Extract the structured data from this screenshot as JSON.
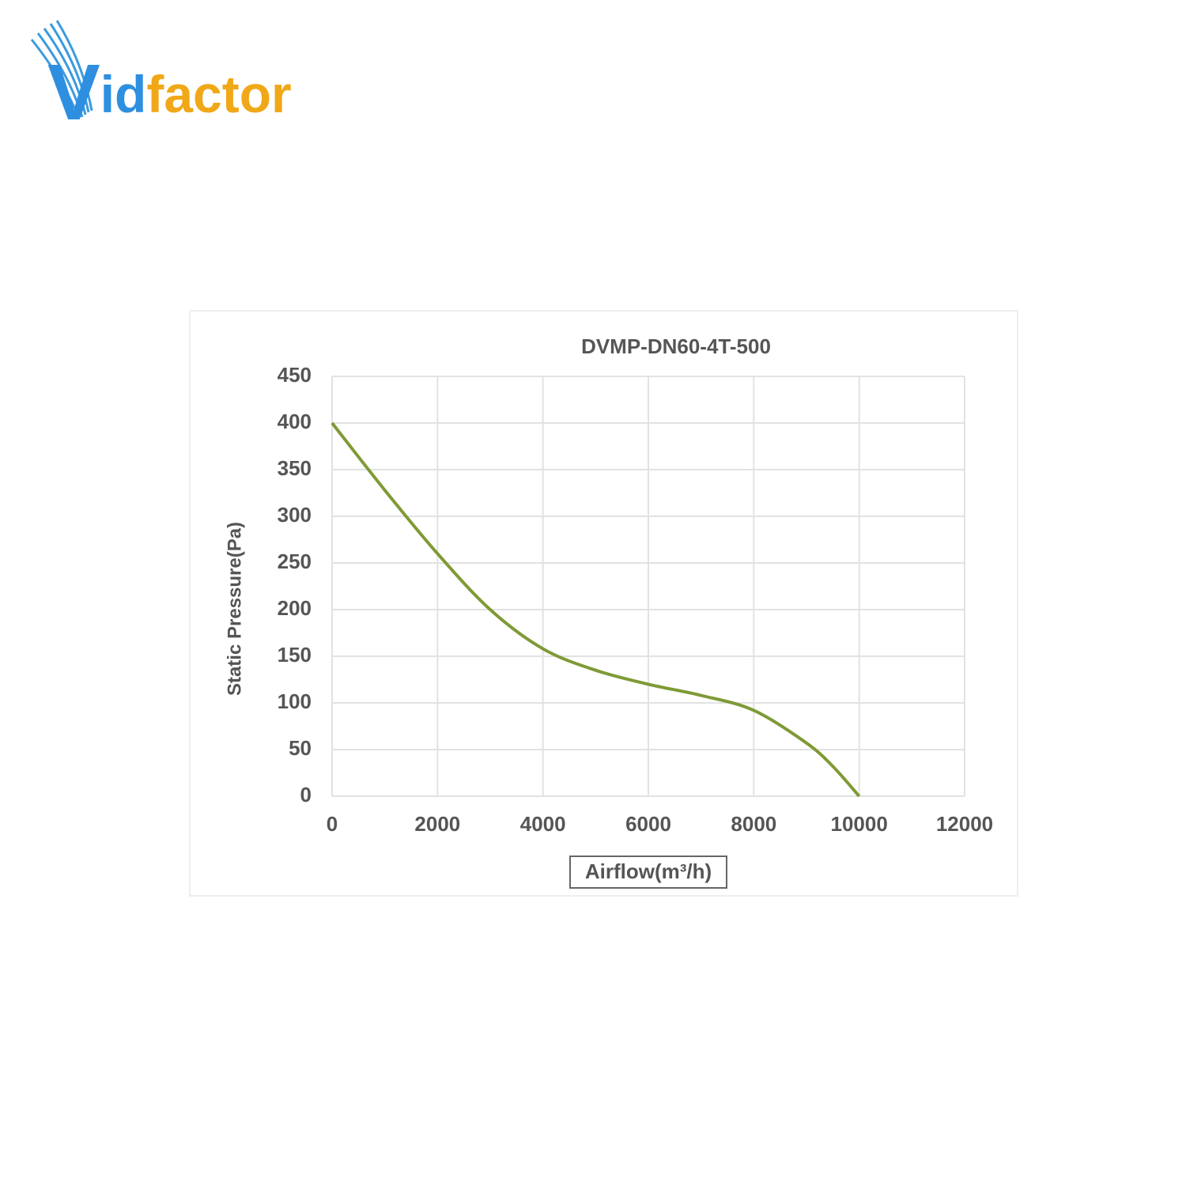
{
  "logo": [
    "V",
    "id",
    "factor"
  ],
  "chart_data": {
    "type": "line",
    "title": "DVMP-DN60-4T-500",
    "x_label": "Airflow(m³/h)",
    "y_label": "Static Pressure(Pa)",
    "x": [
      0,
      1000,
      2000,
      3000,
      4000,
      5000,
      6000,
      7000,
      8000,
      9000,
      9500,
      10000
    ],
    "series": [
      {
        "name": "DVMP-DN60-4T-500",
        "color": "#7f9a35",
        "values": [
          400,
          328,
          260,
          200,
          158,
          135,
          120,
          108,
          92,
          57,
          32,
          0
        ]
      }
    ],
    "xlim": [
      0,
      12000
    ],
    "xticks": [
      0,
      2000,
      4000,
      6000,
      8000,
      10000,
      12000
    ],
    "ylim": [
      0,
      450
    ],
    "yticks": [
      0,
      50,
      100,
      150,
      200,
      250,
      300,
      350,
      400,
      450
    ],
    "grid": true
  }
}
